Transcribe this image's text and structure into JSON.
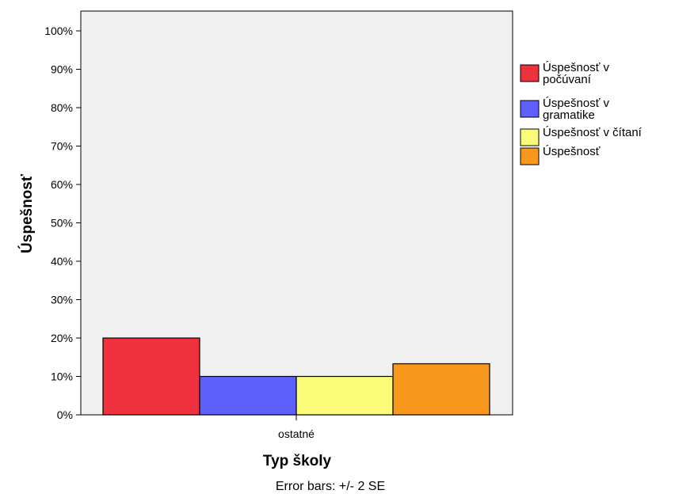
{
  "chart_data": {
    "type": "bar",
    "xlabel": "Typ školy",
    "ylabel": "Úspešnosť",
    "categories": [
      "ostatné"
    ],
    "ylim": [
      0,
      100
    ],
    "yticks": [
      "0%",
      "10%",
      "20%",
      "30%",
      "40%",
      "50%",
      "60%",
      "70%",
      "80%",
      "90%",
      "100%"
    ],
    "series": [
      {
        "name": "Úspešnosť v počúvaní",
        "name_lines": [
          "Úspešnosť v",
          "počúvaní"
        ],
        "values": [
          20
        ],
        "color": "#ef313d"
      },
      {
        "name": "Úspešnosť v gramatike",
        "name_lines": [
          "Úspešnosť v",
          "gramatike"
        ],
        "values": [
          10
        ],
        "color": "#5f5ffc"
      },
      {
        "name": "Úspešnosť v čítaní",
        "name_lines": [
          "Úspešnosť v čítaní"
        ],
        "values": [
          10
        ],
        "color": "#fbfb7a"
      },
      {
        "name": "Úspešnosť",
        "name_lines": [
          "Úspešnosť"
        ],
        "values": [
          13.3
        ],
        "color": "#f7981d"
      }
    ],
    "legend_position": "right",
    "plot_background": "#f0f0f0",
    "grid": false,
    "footnote": "Error bars: +/- 2 SE"
  }
}
